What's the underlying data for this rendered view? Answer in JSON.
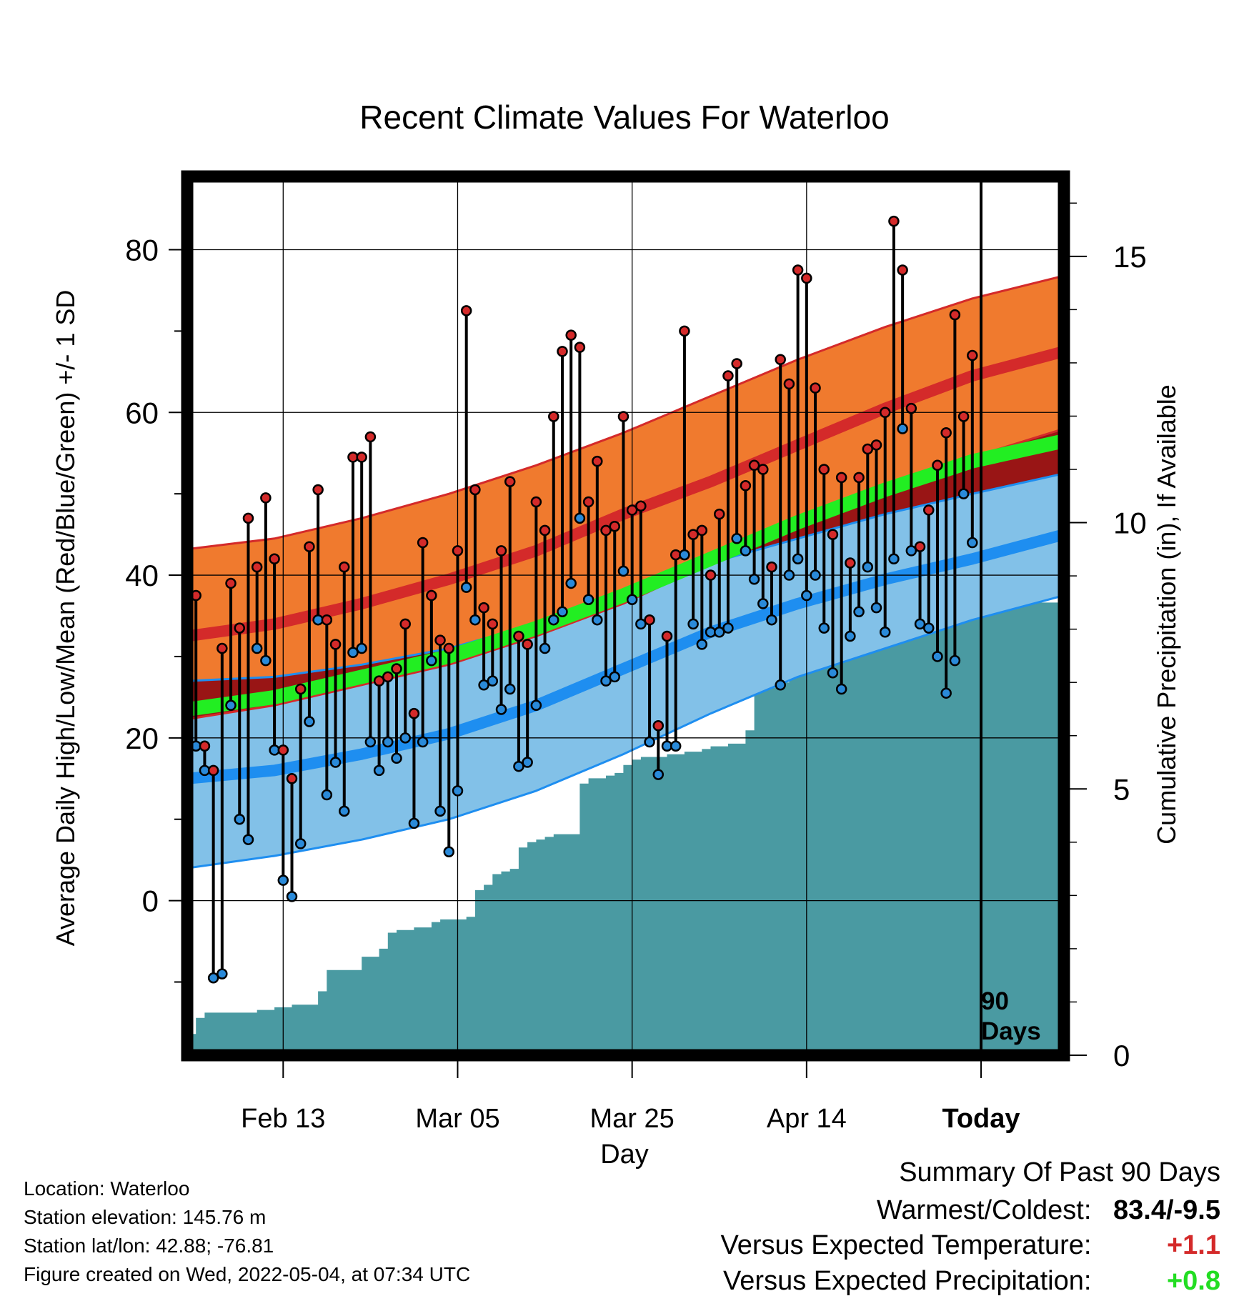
{
  "chart_data": {
    "type": "line",
    "title": "Recent Climate Values For Waterloo",
    "xlabel": "Day",
    "ylabel": "Average Daily High/Low/Mean (Red/Blue/Green) +/- 1 SD",
    "y2label": "Cumulative Precipitation (in), If Available",
    "x_tick_labels": [
      "Feb 13",
      "Mar 05",
      "Mar 25",
      "Apr 14",
      "Today"
    ],
    "x_tick_days": [
      10,
      30,
      50,
      70,
      90
    ],
    "xlim": [
      -1,
      99.5
    ],
    "ylim": [
      -19,
      89
    ],
    "y_ticks": [
      0,
      20,
      40,
      60,
      80
    ],
    "y2lim": [
      0,
      16.5
    ],
    "y2_ticks": [
      0,
      5,
      10,
      15
    ],
    "grid": true,
    "today_marker": {
      "day": 90,
      "label_line1": "90",
      "label_line2": "Days"
    },
    "normals": {
      "days": [
        -1,
        9,
        19,
        29,
        39,
        49,
        59,
        69,
        79,
        89,
        99.5
      ],
      "high_mean": [
        32.5,
        34,
        36.5,
        39.5,
        43,
        47.5,
        51.5,
        56,
        60.5,
        64.5,
        67.5
      ],
      "high_plus_sd": [
        43.2,
        44.5,
        47,
        50,
        53.5,
        57.5,
        62,
        66.5,
        70.5,
        74,
        76.8
      ],
      "high_minus_sd": [
        22.3,
        24,
        26.5,
        29,
        32.5,
        36.5,
        41.5,
        46,
        50.5,
        54.5,
        58
      ],
      "mean": [
        23.5,
        25,
        27.5,
        30,
        33.5,
        37.5,
        42,
        46.5,
        50.5,
        54,
        56.5
      ],
      "low_mean": [
        15,
        16,
        18,
        20.5,
        24,
        28.5,
        33,
        36.5,
        39.5,
        42,
        45
      ],
      "low_plus_sd": [
        27,
        27.5,
        29,
        31,
        34,
        37.5,
        41.5,
        44.5,
        47.5,
        50,
        52.5
      ],
      "low_minus_sd": [
        4,
        5.5,
        7.5,
        10,
        13.5,
        18,
        23,
        27.5,
        31,
        34.5,
        37.5
      ]
    },
    "series": [
      {
        "name": "High",
        "color": "#d42a2a",
        "days": [
          0,
          1,
          2,
          3,
          4,
          5,
          6,
          7,
          8,
          9,
          10,
          11,
          12,
          13,
          14,
          15,
          16,
          17,
          18,
          19,
          20,
          21,
          22,
          23,
          24,
          25,
          26,
          27,
          28,
          29,
          30,
          31,
          32,
          33,
          34,
          35,
          36,
          37,
          38,
          39,
          40,
          41,
          42,
          43,
          44,
          45,
          46,
          47,
          48,
          49,
          50,
          51,
          52,
          53,
          54,
          55,
          56,
          57,
          58,
          59,
          60,
          61,
          62,
          63,
          64,
          65,
          66,
          67,
          68,
          69,
          70,
          71,
          72,
          73,
          74,
          75,
          76,
          77,
          78,
          79,
          80,
          81,
          82,
          83,
          84,
          85,
          86,
          87,
          88,
          89
        ],
        "values": [
          37.5,
          19,
          16,
          31,
          39,
          33.5,
          47,
          41,
          49.5,
          42,
          18.5,
          15,
          26,
          43.5,
          50.5,
          34.5,
          31.5,
          41,
          54.5,
          54.5,
          57,
          27,
          27.5,
          28.5,
          34,
          23,
          44,
          37.5,
          32,
          31,
          43,
          72.5,
          50.5,
          36,
          34,
          43,
          51.5,
          32.5,
          31.5,
          49,
          45.5,
          59.5,
          67.5,
          69.5,
          68,
          49,
          54,
          45.5,
          46,
          59.5,
          48,
          48.5,
          34.5,
          21.5,
          32.5,
          42.5,
          70,
          45,
          45.5,
          40,
          47.5,
          64.5,
          66,
          51,
          53.5,
          53,
          41,
          66.5,
          63.5,
          77.5,
          76.5,
          63,
          53,
          45,
          52,
          41.5,
          52,
          55.5,
          56,
          60,
          83.5,
          77.5,
          60.5,
          43.5,
          48,
          53.5,
          57.5,
          72,
          59.5,
          67
        ]
      },
      {
        "name": "Low",
        "color": "#2a8ad9",
        "days": [
          0,
          1,
          2,
          3,
          4,
          5,
          6,
          7,
          8,
          9,
          10,
          11,
          12,
          13,
          14,
          15,
          16,
          17,
          18,
          19,
          20,
          21,
          22,
          23,
          24,
          25,
          26,
          27,
          28,
          29,
          30,
          31,
          32,
          33,
          34,
          35,
          36,
          37,
          38,
          39,
          40,
          41,
          42,
          43,
          44,
          45,
          46,
          47,
          48,
          49,
          50,
          51,
          52,
          53,
          54,
          55,
          56,
          57,
          58,
          59,
          60,
          61,
          62,
          63,
          64,
          65,
          66,
          67,
          68,
          69,
          70,
          71,
          72,
          73,
          74,
          75,
          76,
          77,
          78,
          79,
          80,
          81,
          82,
          83,
          84,
          85,
          86,
          87,
          88,
          89
        ],
        "values": [
          19,
          16,
          -9.5,
          -9,
          24,
          10,
          7.5,
          31,
          29.5,
          18.5,
          2.5,
          0.5,
          7,
          22,
          34.5,
          13,
          17,
          11,
          30.5,
          31,
          19.5,
          16,
          19.5,
          17.5,
          20,
          9.5,
          19.5,
          29.5,
          11,
          6,
          13.5,
          38.5,
          34.5,
          26.5,
          27,
          23.5,
          26,
          16.5,
          17,
          24,
          31,
          34.5,
          35.5,
          39,
          47,
          37,
          34.5,
          27,
          27.5,
          40.5,
          37,
          34,
          19.5,
          15.5,
          19,
          19,
          42.5,
          34,
          31.5,
          33,
          33,
          33.5,
          44.5,
          43,
          39.5,
          36.5,
          34.5,
          26.5,
          40,
          42,
          37.5,
          40,
          33.5,
          28,
          26,
          32.5,
          35.5,
          41,
          36,
          33,
          42,
          58,
          43,
          34,
          33.5,
          30,
          25.5,
          29.5,
          50,
          44
        ]
      }
    ],
    "precip_area": {
      "days": [
        -1,
        0,
        1,
        2,
        3,
        4,
        5,
        6,
        7,
        8,
        9,
        10,
        11,
        12,
        13,
        14,
        15,
        16,
        17,
        18,
        19,
        20,
        21,
        22,
        23,
        24,
        25,
        26,
        27,
        28,
        29,
        30,
        31,
        32,
        33,
        34,
        35,
        36,
        37,
        38,
        39,
        40,
        41,
        42,
        43,
        44,
        45,
        46,
        47,
        48,
        49,
        50,
        51,
        52,
        53,
        54,
        55,
        56,
        57,
        58,
        59,
        60,
        61,
        62,
        63,
        64,
        65,
        66,
        67,
        68,
        69,
        70,
        71,
        72,
        73,
        74,
        75,
        76,
        77,
        78,
        79,
        80,
        81,
        82,
        83,
        84,
        85,
        86,
        87,
        88,
        89,
        90,
        99.5
      ],
      "cumulative_in": [
        0.4,
        0.7,
        0.8,
        0.8,
        0.8,
        0.8,
        0.8,
        0.8,
        0.85,
        0.85,
        0.9,
        0.9,
        0.95,
        0.95,
        0.95,
        1.2,
        1.6,
        1.6,
        1.6,
        1.6,
        1.85,
        1.85,
        2.0,
        2.3,
        2.35,
        2.35,
        2.4,
        2.4,
        2.5,
        2.55,
        2.55,
        2.55,
        2.6,
        3.1,
        3.2,
        3.4,
        3.45,
        3.5,
        3.9,
        4.0,
        4.05,
        4.1,
        4.15,
        4.15,
        4.15,
        5.1,
        5.2,
        5.2,
        5.25,
        5.3,
        5.45,
        5.55,
        5.6,
        5.6,
        5.6,
        5.65,
        5.65,
        5.7,
        5.7,
        5.75,
        5.8,
        5.8,
        5.85,
        5.85,
        6.1,
        6.9,
        6.9,
        6.9,
        7.0,
        7.3,
        7.4,
        7.5,
        7.5,
        7.65,
        7.8,
        8.0,
        8.2,
        8.2,
        8.2,
        8.2,
        8.2,
        8.25,
        8.25,
        8.25,
        8.25,
        8.3,
        8.3,
        8.4,
        8.45,
        8.5,
        8.5,
        8.5,
        8.5
      ]
    }
  },
  "location": {
    "location_line": "Location: Waterloo",
    "elevation_line": "Station elevation: 145.76 m",
    "latlon_line": "Station lat/lon: 42.88; -76.81",
    "created_line": "Figure created on Wed, 2022-05-04, at 07:34 UTC"
  },
  "summary": {
    "heading": "Summary Of Past 90 Days",
    "warmest_label": "Warmest/Coldest:",
    "warmest_value": "83.4/-9.5",
    "temp_label": "Versus Expected Temperature:",
    "temp_value": "+1.1",
    "temp_color": "#d42a2a",
    "precip_label": "Versus Expected Precipitation:",
    "precip_value": "+0.8",
    "precip_color": "#22dd22"
  },
  "colors": {
    "high_band": "#f07a2e",
    "high_mean": "#d42a2a",
    "mean_line": "#22ee22",
    "low_band": "#82c1e8",
    "low_mean": "#1e8ef0",
    "overlap_band": "#991515",
    "precip_fill": "#4a9aa2"
  }
}
